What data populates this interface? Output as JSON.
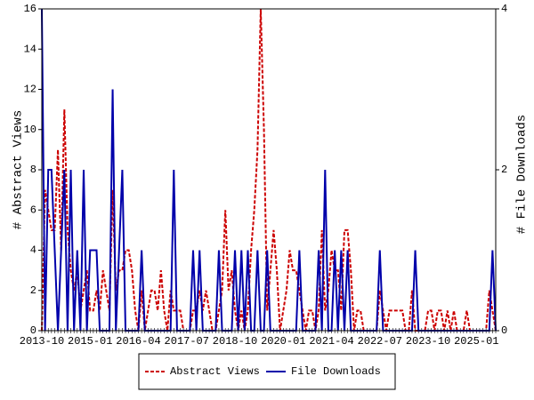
{
  "chart_data": {
    "type": "line",
    "categories": [
      "2013-10",
      null,
      null,
      null,
      null,
      null,
      null,
      null,
      null,
      null,
      null,
      null,
      null,
      null,
      null,
      "2015-01",
      null,
      null,
      null,
      null,
      null,
      null,
      null,
      null,
      null,
      null,
      null,
      null,
      null,
      null,
      "2016-04",
      null,
      null,
      null,
      null,
      null,
      null,
      null,
      null,
      null,
      null,
      null,
      null,
      null,
      null,
      "2017-07",
      null,
      null,
      null,
      null,
      null,
      null,
      null,
      null,
      null,
      null,
      null,
      null,
      null,
      null,
      "2018-10",
      null,
      null,
      null,
      null,
      null,
      null,
      null,
      null,
      null,
      null,
      null,
      null,
      null,
      null,
      "2020-01",
      null,
      null,
      null,
      null,
      null,
      null,
      null,
      null,
      null,
      null,
      null,
      null,
      null,
      null,
      "2021-04",
      null,
      null,
      null,
      null,
      null,
      null,
      null,
      null,
      null,
      null,
      null,
      null,
      null,
      null,
      "2022-07",
      null,
      null,
      null,
      null,
      null,
      null,
      null,
      null,
      null,
      null,
      null,
      null,
      null,
      null,
      "2023-10",
      null,
      null,
      null,
      null,
      null,
      null,
      null,
      null,
      null,
      null,
      null,
      null,
      null,
      null,
      "2025-01",
      null,
      null,
      null,
      null,
      null,
      null
    ],
    "ylabel": "# Abstract Views",
    "y2label": "# File Downloads",
    "ylim": [
      0,
      16
    ],
    "yticks": [
      0,
      2,
      4,
      6,
      8,
      10,
      12,
      14,
      16
    ],
    "y2lim": [
      0,
      4
    ],
    "y2ticks": [
      0,
      2,
      4
    ],
    "legend": "bottom",
    "series": [
      {
        "name": "Abstract Views",
        "color": "#cc0000",
        "dash": true,
        "axis": "y",
        "values": [
          0,
          7,
          6,
          5,
          5,
          9,
          4,
          11,
          5,
          3,
          2,
          3,
          1,
          2,
          3,
          1,
          1,
          2,
          1,
          3,
          2,
          1,
          7,
          2,
          3,
          3,
          4,
          4,
          3,
          1,
          0,
          2,
          0,
          1,
          2,
          2,
          1,
          3,
          1,
          0,
          2,
          1,
          1,
          1,
          0,
          0,
          0,
          1,
          1,
          2,
          1,
          2,
          1,
          0,
          0,
          1,
          2,
          6,
          2,
          3,
          1,
          0,
          1,
          0,
          1,
          4,
          6,
          9,
          16,
          10,
          1,
          3,
          5,
          3,
          0,
          1,
          2,
          4,
          3,
          3,
          2,
          1,
          0,
          1,
          1,
          0,
          1,
          5,
          1,
          2,
          4,
          3,
          3,
          1,
          5,
          5,
          3,
          0,
          1,
          1,
          0,
          0,
          0,
          0,
          0,
          2,
          1,
          0,
          1,
          1,
          1,
          1,
          1,
          0,
          0,
          2,
          0,
          0,
          0,
          0,
          1,
          1,
          0,
          1,
          1,
          0,
          1,
          0,
          1,
          0,
          0,
          0,
          1,
          0,
          0,
          0,
          0,
          0,
          0,
          2,
          1,
          0
        ]
      },
      {
        "name": "File Downloads",
        "color": "#0000aa",
        "dash": false,
        "axis": "y2",
        "values": [
          4,
          0,
          2,
          2,
          1,
          0,
          1,
          2,
          0,
          2,
          0,
          1,
          0,
          2,
          0,
          1,
          1,
          1,
          0,
          0,
          0,
          0,
          3,
          0,
          1,
          2,
          0,
          0,
          0,
          0,
          0,
          1,
          0,
          0,
          0,
          0,
          0,
          0,
          0,
          0,
          0,
          2,
          0,
          0,
          0,
          0,
          0,
          1,
          0,
          1,
          0,
          0,
          0,
          0,
          0,
          1,
          0,
          0,
          0,
          0,
          1,
          0,
          1,
          0,
          1,
          0,
          0,
          1,
          0,
          0,
          1,
          0,
          0,
          0,
          0,
          0,
          0,
          0,
          0,
          0,
          1,
          0,
          0,
          0,
          0,
          0,
          1,
          0,
          2,
          0,
          0,
          1,
          0,
          1,
          0,
          1,
          0,
          0,
          0,
          0,
          0,
          0,
          0,
          0,
          0,
          1,
          0,
          0,
          0,
          0,
          0,
          0,
          0,
          0,
          0,
          0,
          1,
          0,
          0,
          0,
          0,
          0,
          0,
          0,
          0,
          0,
          0,
          0,
          0,
          0,
          0,
          0,
          0,
          0,
          0,
          0,
          0,
          0,
          0,
          0,
          1,
          0
        ]
      }
    ]
  }
}
